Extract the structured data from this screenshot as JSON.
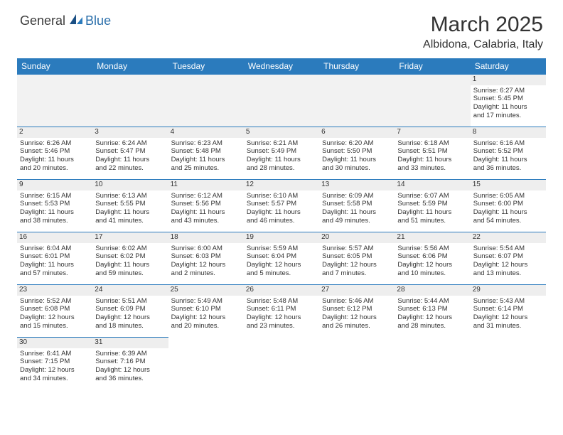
{
  "logo": {
    "general": "General",
    "blue": "Blue"
  },
  "title": "March 2025",
  "location": "Albidona, Calabria, Italy",
  "colors": {
    "header_bg": "#2b7bbd",
    "header_fg": "#ffffff",
    "border": "#2b7bbd",
    "daybg": "#eeeeee",
    "blankbg": "#f2f2f2",
    "text": "#333333",
    "logo_blue": "#2b6fab"
  },
  "weekdays": [
    "Sunday",
    "Monday",
    "Tuesday",
    "Wednesday",
    "Thursday",
    "Friday",
    "Saturday"
  ],
  "weeks": [
    [
      null,
      null,
      null,
      null,
      null,
      null,
      {
        "n": "1",
        "sr": "Sunrise: 6:27 AM",
        "ss": "Sunset: 5:45 PM",
        "d1": "Daylight: 11 hours",
        "d2": "and 17 minutes."
      }
    ],
    [
      {
        "n": "2",
        "sr": "Sunrise: 6:26 AM",
        "ss": "Sunset: 5:46 PM",
        "d1": "Daylight: 11 hours",
        "d2": "and 20 minutes."
      },
      {
        "n": "3",
        "sr": "Sunrise: 6:24 AM",
        "ss": "Sunset: 5:47 PM",
        "d1": "Daylight: 11 hours",
        "d2": "and 22 minutes."
      },
      {
        "n": "4",
        "sr": "Sunrise: 6:23 AM",
        "ss": "Sunset: 5:48 PM",
        "d1": "Daylight: 11 hours",
        "d2": "and 25 minutes."
      },
      {
        "n": "5",
        "sr": "Sunrise: 6:21 AM",
        "ss": "Sunset: 5:49 PM",
        "d1": "Daylight: 11 hours",
        "d2": "and 28 minutes."
      },
      {
        "n": "6",
        "sr": "Sunrise: 6:20 AM",
        "ss": "Sunset: 5:50 PM",
        "d1": "Daylight: 11 hours",
        "d2": "and 30 minutes."
      },
      {
        "n": "7",
        "sr": "Sunrise: 6:18 AM",
        "ss": "Sunset: 5:51 PM",
        "d1": "Daylight: 11 hours",
        "d2": "and 33 minutes."
      },
      {
        "n": "8",
        "sr": "Sunrise: 6:16 AM",
        "ss": "Sunset: 5:52 PM",
        "d1": "Daylight: 11 hours",
        "d2": "and 36 minutes."
      }
    ],
    [
      {
        "n": "9",
        "sr": "Sunrise: 6:15 AM",
        "ss": "Sunset: 5:53 PM",
        "d1": "Daylight: 11 hours",
        "d2": "and 38 minutes."
      },
      {
        "n": "10",
        "sr": "Sunrise: 6:13 AM",
        "ss": "Sunset: 5:55 PM",
        "d1": "Daylight: 11 hours",
        "d2": "and 41 minutes."
      },
      {
        "n": "11",
        "sr": "Sunrise: 6:12 AM",
        "ss": "Sunset: 5:56 PM",
        "d1": "Daylight: 11 hours",
        "d2": "and 43 minutes."
      },
      {
        "n": "12",
        "sr": "Sunrise: 6:10 AM",
        "ss": "Sunset: 5:57 PM",
        "d1": "Daylight: 11 hours",
        "d2": "and 46 minutes."
      },
      {
        "n": "13",
        "sr": "Sunrise: 6:09 AM",
        "ss": "Sunset: 5:58 PM",
        "d1": "Daylight: 11 hours",
        "d2": "and 49 minutes."
      },
      {
        "n": "14",
        "sr": "Sunrise: 6:07 AM",
        "ss": "Sunset: 5:59 PM",
        "d1": "Daylight: 11 hours",
        "d2": "and 51 minutes."
      },
      {
        "n": "15",
        "sr": "Sunrise: 6:05 AM",
        "ss": "Sunset: 6:00 PM",
        "d1": "Daylight: 11 hours",
        "d2": "and 54 minutes."
      }
    ],
    [
      {
        "n": "16",
        "sr": "Sunrise: 6:04 AM",
        "ss": "Sunset: 6:01 PM",
        "d1": "Daylight: 11 hours",
        "d2": "and 57 minutes."
      },
      {
        "n": "17",
        "sr": "Sunrise: 6:02 AM",
        "ss": "Sunset: 6:02 PM",
        "d1": "Daylight: 11 hours",
        "d2": "and 59 minutes."
      },
      {
        "n": "18",
        "sr": "Sunrise: 6:00 AM",
        "ss": "Sunset: 6:03 PM",
        "d1": "Daylight: 12 hours",
        "d2": "and 2 minutes."
      },
      {
        "n": "19",
        "sr": "Sunrise: 5:59 AM",
        "ss": "Sunset: 6:04 PM",
        "d1": "Daylight: 12 hours",
        "d2": "and 5 minutes."
      },
      {
        "n": "20",
        "sr": "Sunrise: 5:57 AM",
        "ss": "Sunset: 6:05 PM",
        "d1": "Daylight: 12 hours",
        "d2": "and 7 minutes."
      },
      {
        "n": "21",
        "sr": "Sunrise: 5:56 AM",
        "ss": "Sunset: 6:06 PM",
        "d1": "Daylight: 12 hours",
        "d2": "and 10 minutes."
      },
      {
        "n": "22",
        "sr": "Sunrise: 5:54 AM",
        "ss": "Sunset: 6:07 PM",
        "d1": "Daylight: 12 hours",
        "d2": "and 13 minutes."
      }
    ],
    [
      {
        "n": "23",
        "sr": "Sunrise: 5:52 AM",
        "ss": "Sunset: 6:08 PM",
        "d1": "Daylight: 12 hours",
        "d2": "and 15 minutes."
      },
      {
        "n": "24",
        "sr": "Sunrise: 5:51 AM",
        "ss": "Sunset: 6:09 PM",
        "d1": "Daylight: 12 hours",
        "d2": "and 18 minutes."
      },
      {
        "n": "25",
        "sr": "Sunrise: 5:49 AM",
        "ss": "Sunset: 6:10 PM",
        "d1": "Daylight: 12 hours",
        "d2": "and 20 minutes."
      },
      {
        "n": "26",
        "sr": "Sunrise: 5:48 AM",
        "ss": "Sunset: 6:11 PM",
        "d1": "Daylight: 12 hours",
        "d2": "and 23 minutes."
      },
      {
        "n": "27",
        "sr": "Sunrise: 5:46 AM",
        "ss": "Sunset: 6:12 PM",
        "d1": "Daylight: 12 hours",
        "d2": "and 26 minutes."
      },
      {
        "n": "28",
        "sr": "Sunrise: 5:44 AM",
        "ss": "Sunset: 6:13 PM",
        "d1": "Daylight: 12 hours",
        "d2": "and 28 minutes."
      },
      {
        "n": "29",
        "sr": "Sunrise: 5:43 AM",
        "ss": "Sunset: 6:14 PM",
        "d1": "Daylight: 12 hours",
        "d2": "and 31 minutes."
      }
    ],
    [
      {
        "n": "30",
        "sr": "Sunrise: 6:41 AM",
        "ss": "Sunset: 7:15 PM",
        "d1": "Daylight: 12 hours",
        "d2": "and 34 minutes."
      },
      {
        "n": "31",
        "sr": "Sunrise: 6:39 AM",
        "ss": "Sunset: 7:16 PM",
        "d1": "Daylight: 12 hours",
        "d2": "and 36 minutes."
      },
      null,
      null,
      null,
      null,
      null
    ]
  ]
}
